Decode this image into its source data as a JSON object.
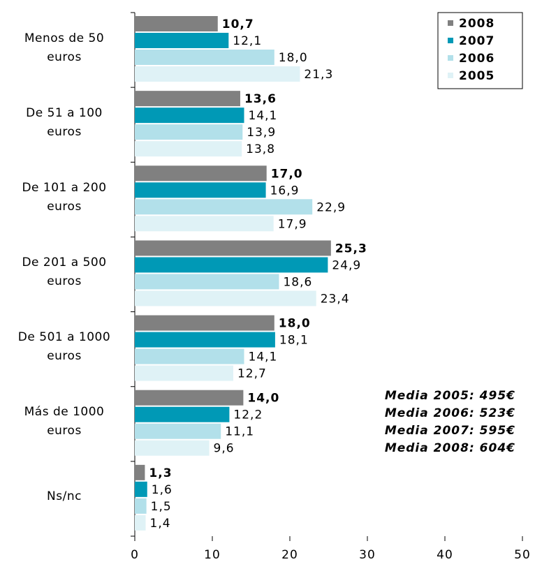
{
  "chart_data": {
    "type": "hbar",
    "categories": [
      "Menos de 50\neuros",
      "De 51 a 100\neuros",
      "De 101 a 200\neuros",
      "De 201 a 500\neuros",
      "De 501 a 1000\neuros",
      "Más de 1000\neuros",
      "Ns/nc"
    ],
    "series": [
      {
        "name": "2008",
        "color": "#808080",
        "values": [
          10.7,
          13.6,
          17.0,
          25.3,
          18.0,
          14.0,
          1.3
        ],
        "value_labels": [
          "10,7",
          "13,6",
          "17,0",
          "25,3",
          "18,0",
          "14,0",
          "1,3"
        ]
      },
      {
        "name": "2007",
        "color": "#0099b6",
        "values": [
          12.1,
          14.1,
          16.9,
          24.9,
          18.1,
          12.2,
          1.6
        ],
        "value_labels": [
          "12,1",
          "14,1",
          "16,9",
          "24,9",
          "18,1",
          "12,2",
          "1,6"
        ]
      },
      {
        "name": "2006",
        "color": "#b2e0ea",
        "values": [
          18.0,
          13.9,
          22.9,
          18.6,
          14.1,
          11.1,
          1.5
        ],
        "value_labels": [
          "18,0",
          "13,9",
          "22,9",
          "18,6",
          "14,1",
          "11,1",
          "1,5"
        ]
      },
      {
        "name": "2005",
        "color": "#dff2f6",
        "values": [
          21.3,
          13.8,
          17.9,
          23.4,
          12.7,
          9.6,
          1.4
        ],
        "value_labels": [
          "21,3",
          "13,8",
          "17,9",
          "23,4",
          "12,7",
          "9,6",
          "1,4"
        ]
      }
    ],
    "xlim": [
      0,
      50
    ],
    "xticks": [
      0,
      10,
      20,
      30,
      40,
      50
    ],
    "legend": "top-right",
    "annotations": [
      "Media 2005: 495€",
      "Media 2006: 523€",
      "Media 2007: 595€",
      "Media 2008: 604€"
    ]
  }
}
